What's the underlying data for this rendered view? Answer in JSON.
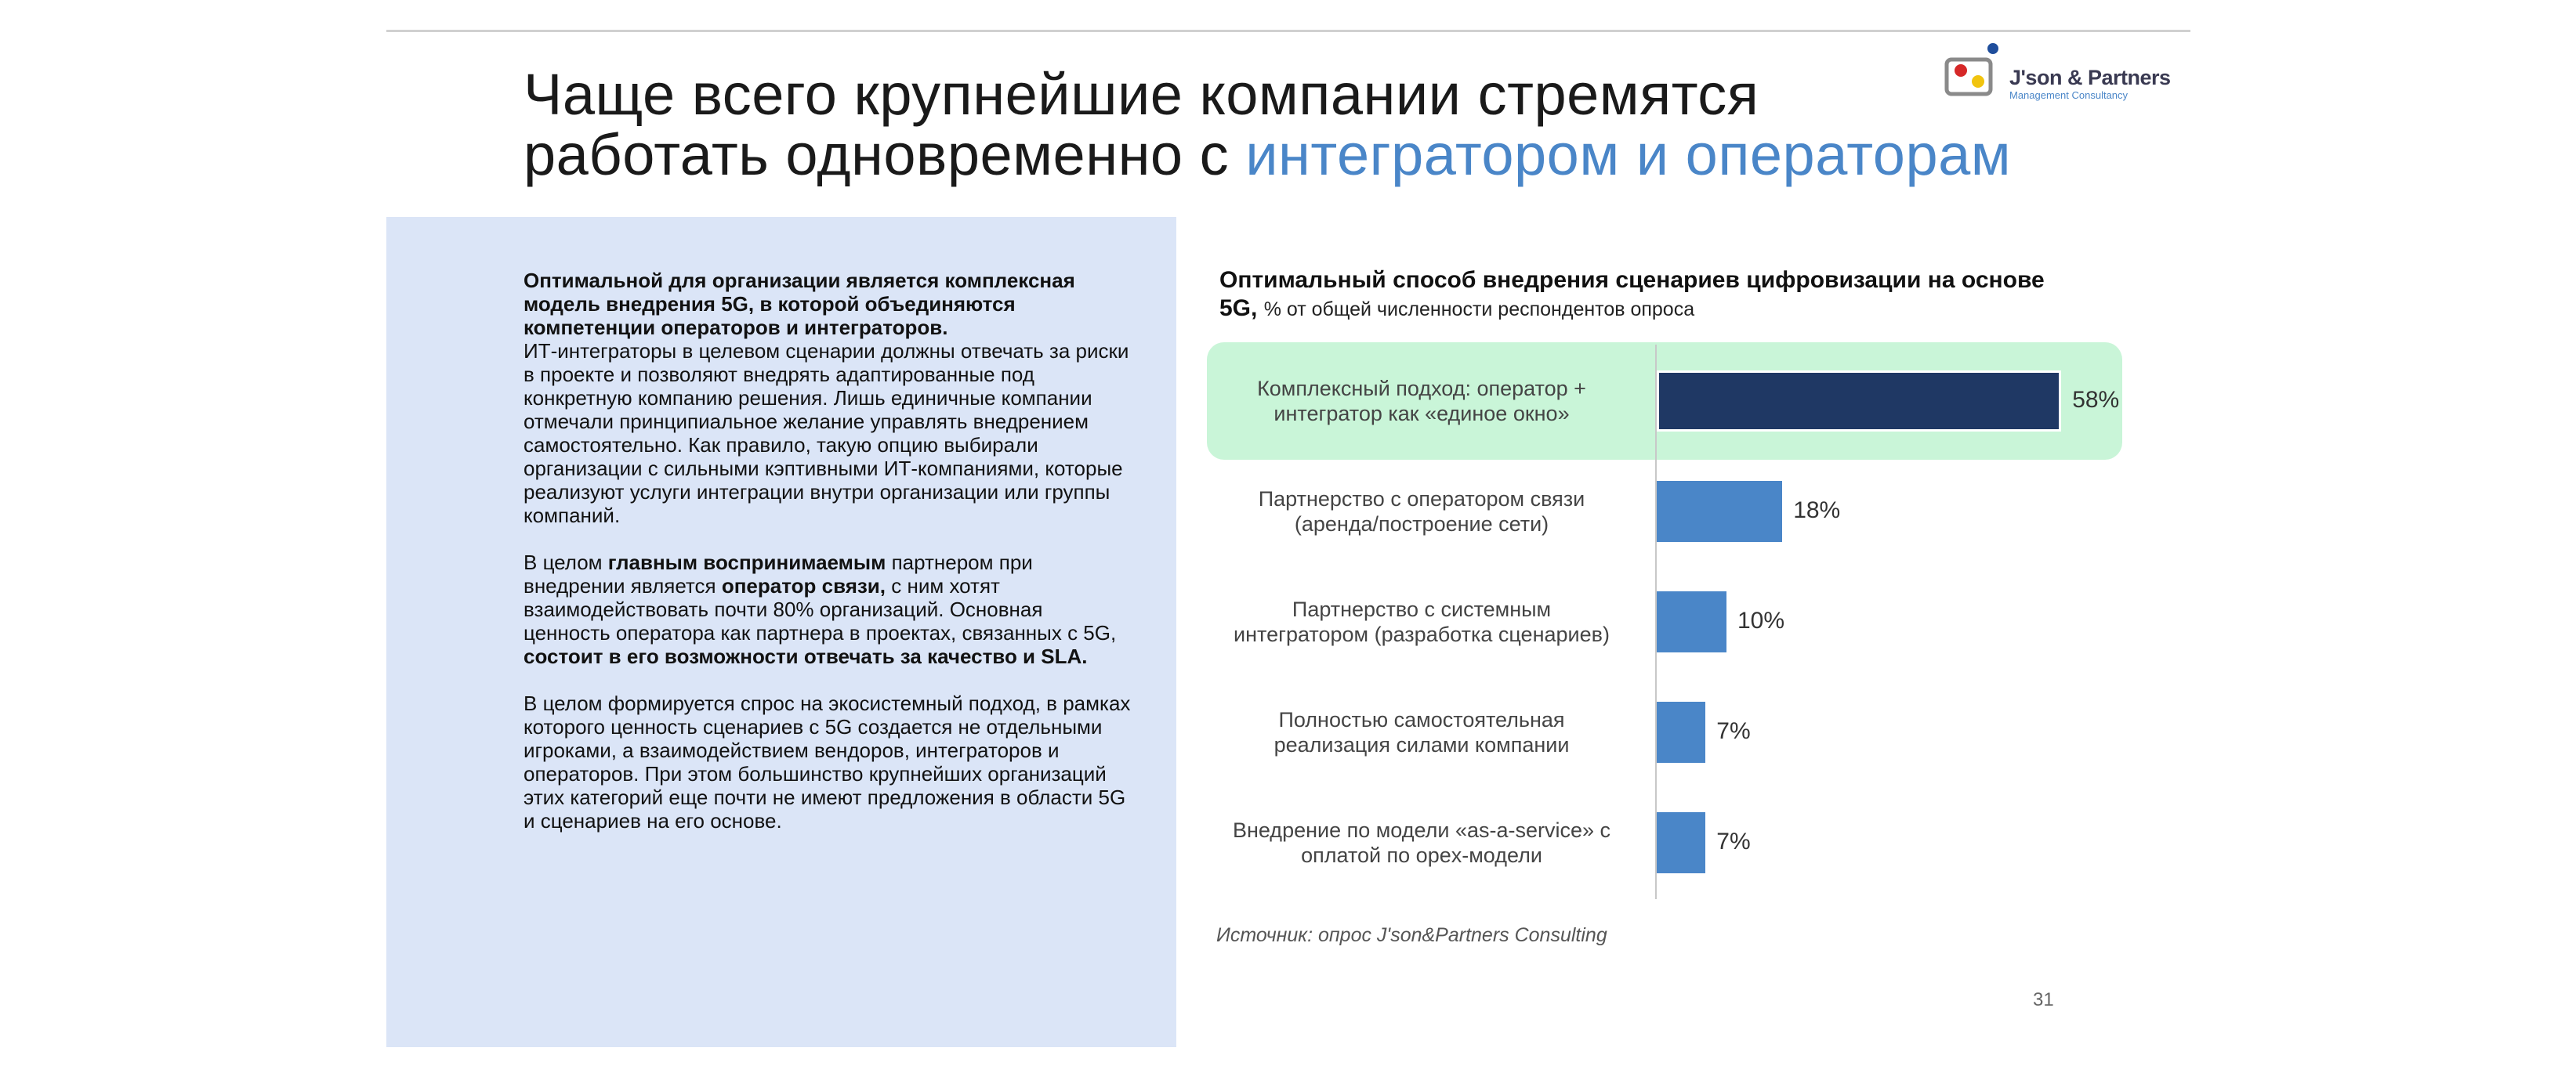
{
  "header": {
    "title_line1": "Чаще всего крупнейшие компании стремятся",
    "title_line2_plain": "работать одновременно с ",
    "title_line2_accent": "интегратором и операторам"
  },
  "logo": {
    "name": "J'son & Partners",
    "subtitle": "Management Consultancy"
  },
  "left_text": {
    "p1_bold": "Оптимальной для организации является комплексная модель внедрения 5G, в которой объединяются компетенции операторов и интеграторов.",
    "p1_rest": "ИТ-интеграторы в целевом сценарии должны отвечать за риски в проекте и позволяют внедрять адаптированные под конкретную компанию решения. Лишь единичные компании отмечали принципиальное желание управлять внедрением самостоятельно. Как правило, такую опцию выбирали организации с сильными кэптивными ИТ-компаниями, которые реализуют услуги интеграции внутри организации или группы компаний.",
    "p2_a": "В целом ",
    "p2_b": "главным воспринимаемым",
    "p2_c": " партнером при внедрении является ",
    "p2_d": "оператор связи,",
    "p2_e": " с ним хотят взаимодействовать почти 80% организаций. Основная ценность оператора как партнера в проектах, связанных с 5G, ",
    "p2_f": "состоит в его возможности отвечать за качество и SLA.",
    "p3": "В целом формируется спрос на экосистемный подход, в рамках которого ценность сценариев с 5G создается не отдельными игроками, а взаимодействием вендоров, интеграторов и операторов. При этом большинство крупнейших организаций этих категорий еще почти не имеют предложения в области 5G и сценариев на его основе."
  },
  "chart_data": {
    "type": "bar",
    "orientation": "horizontal",
    "title": "Оптимальный способ внедрения сценариев цифровизации на основе 5G,",
    "subtitle": "% от общей численности респондентов опроса",
    "categories": [
      "Комплексный подход: оператор + интегратор как «единое окно»",
      "Партнерство с оператором связи (аренда/построение сети)",
      "Партнерство с системным интегратором (разработка сценариев)",
      "Полностью самостоятельная реализация силами компании",
      "Внедрение по модели «as-a-service» с оплатой по opex-модели"
    ],
    "category_lines": [
      [
        "Комплексный подход: оператор +",
        "интегратор как «единое окно»"
      ],
      [
        "Партнерство с оператором связи",
        "(аренда/построение сети)"
      ],
      [
        "Партнерство с системным",
        "интегратором (разработка сценариев)"
      ],
      [
        "Полностью самостоятельная",
        "реализация силами компании"
      ],
      [
        "Внедрение по модели «as-a-service» с",
        "оплатой по opex-модели"
      ]
    ],
    "values": [
      58,
      18,
      10,
      7,
      7
    ],
    "value_labels": [
      "58%",
      "18%",
      "10%",
      "7%",
      "7%"
    ],
    "unit": "%",
    "xlim": [
      0,
      100
    ],
    "highlighted_index": 0,
    "colors": {
      "main": "#1f3864",
      "other": "#4a86c8",
      "highlight_bg": "#c9f5d8"
    },
    "grid": false,
    "legend": "none"
  },
  "footer": {
    "source": "Источник: опрос J'son&Partners Consulting",
    "page_number": "31"
  }
}
